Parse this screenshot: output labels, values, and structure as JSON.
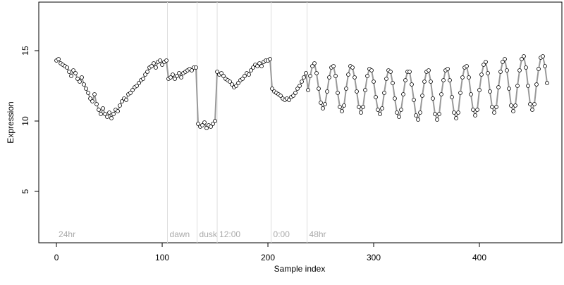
{
  "chart_data": {
    "type": "scatter",
    "xlabel": "Sample index",
    "ylabel": "Expression",
    "xlim": [
      -16.7,
      478
    ],
    "ylim": [
      1.35,
      18.45
    ],
    "xticks": [
      0,
      100,
      200,
      300,
      400
    ],
    "yticks": [
      5,
      10,
      15
    ],
    "markers": [
      {
        "x": 0,
        "label": "24hr"
      },
      {
        "x": 105,
        "label": "dawn"
      },
      {
        "x": 133,
        "label": "dusk"
      },
      {
        "x": 152,
        "label": "12:00"
      },
      {
        "x": 203,
        "label": "0:00"
      },
      {
        "x": 237,
        "label": "48hr"
      }
    ],
    "series": [
      {
        "color": "#999999",
        "x": [
          0,
          2,
          4,
          6,
          8,
          10,
          12,
          14,
          16,
          18,
          20,
          22,
          24,
          26,
          28,
          30,
          32,
          34,
          36,
          38,
          40,
          42,
          44,
          46,
          48,
          50,
          52,
          54,
          56,
          58,
          60,
          62,
          64,
          66,
          68,
          70,
          72,
          74,
          76,
          78,
          80,
          82,
          84,
          86,
          88,
          90,
          92,
          94,
          96,
          98,
          100,
          102,
          104,
          106,
          108,
          110,
          112,
          114,
          116,
          118,
          120,
          122,
          124,
          126,
          128,
          130,
          132,
          134,
          136,
          138,
          140,
          142,
          144,
          146,
          148,
          150,
          152,
          154,
          156,
          158,
          160,
          162,
          164,
          166,
          168,
          170,
          172,
          174,
          176,
          178,
          180,
          182,
          184,
          186,
          188,
          190,
          192,
          194,
          196,
          198,
          200,
          202,
          204,
          206,
          208,
          210,
          212,
          214,
          216,
          218,
          220,
          222,
          224,
          226,
          228,
          230,
          232,
          234,
          236,
          238,
          240,
          242,
          244,
          246,
          248,
          250,
          252,
          254,
          256,
          258,
          260,
          262,
          264,
          266,
          268,
          270,
          272,
          274,
          276,
          278,
          280,
          282,
          284,
          286,
          288,
          290,
          292,
          294,
          296,
          298,
          300,
          302,
          304,
          306,
          308,
          310,
          312,
          314,
          316,
          318,
          320,
          322,
          324,
          326,
          328,
          330,
          332,
          334,
          336,
          338,
          340,
          342,
          344,
          346,
          348,
          350,
          352,
          354,
          356,
          358,
          360,
          362,
          364,
          366,
          368,
          370,
          372,
          374,
          376,
          378,
          380,
          382,
          384,
          386,
          388,
          390,
          392,
          394,
          396,
          398,
          400,
          402,
          404,
          406,
          408,
          410,
          412,
          414,
          416,
          418,
          420,
          422,
          424,
          426,
          428,
          430,
          432,
          434,
          436,
          438,
          440,
          442,
          444,
          446,
          448,
          450,
          452,
          454,
          456,
          458,
          460,
          462,
          464
        ],
        "values": [
          14.3,
          14.4,
          14.1,
          14.0,
          13.9,
          13.8,
          13.5,
          13.2,
          13.6,
          13.4,
          13.0,
          12.8,
          13.1,
          12.6,
          12.3,
          12.0,
          11.6,
          11.4,
          11.9,
          11.2,
          10.8,
          10.5,
          10.9,
          10.5,
          10.3,
          10.6,
          10.2,
          10.5,
          10.8,
          10.7,
          11.1,
          11.4,
          11.6,
          11.5,
          11.9,
          12.0,
          12.2,
          12.4,
          12.5,
          12.7,
          12.9,
          13.0,
          13.3,
          13.5,
          13.8,
          13.9,
          14.1,
          13.8,
          14.2,
          14.3,
          14.0,
          14.2,
          14.3,
          13.0,
          13.1,
          13.3,
          13.0,
          13.2,
          13.4,
          13.1,
          13.4,
          13.5,
          13.6,
          13.7,
          13.6,
          13.8,
          13.8,
          9.8,
          9.6,
          9.7,
          9.9,
          9.5,
          9.7,
          9.6,
          9.8,
          10.0,
          13.5,
          13.3,
          13.4,
          13.2,
          13.0,
          12.9,
          12.8,
          12.6,
          12.4,
          12.5,
          12.7,
          12.9,
          13.0,
          13.2,
          13.4,
          13.3,
          13.6,
          13.8,
          14.0,
          13.9,
          14.1,
          13.9,
          14.2,
          14.3,
          14.3,
          14.4,
          12.3,
          12.1,
          12.0,
          11.9,
          11.8,
          11.6,
          11.5,
          11.6,
          11.5,
          11.7,
          11.8,
          12.0,
          12.3,
          12.5,
          12.8,
          13.1,
          13.4,
          12.2,
          13.2,
          13.9,
          14.1,
          13.4,
          12.3,
          11.3,
          10.9,
          11.2,
          12.1,
          13.1,
          13.8,
          13.9,
          13.2,
          12.0,
          11.0,
          10.7,
          11.1,
          12.3,
          13.3,
          13.9,
          13.8,
          13.1,
          12.1,
          11.0,
          10.6,
          11.0,
          12.2,
          13.2,
          13.7,
          13.6,
          12.8,
          11.7,
          10.8,
          10.5,
          10.9,
          12.0,
          13.0,
          13.6,
          13.5,
          12.7,
          11.6,
          10.6,
          10.3,
          10.8,
          11.9,
          12.9,
          13.5,
          13.5,
          12.6,
          11.5,
          10.4,
          10.1,
          10.6,
          11.8,
          12.8,
          13.5,
          13.6,
          12.8,
          11.6,
          10.5,
          10.1,
          10.5,
          11.9,
          12.9,
          13.6,
          13.7,
          12.9,
          11.7,
          10.6,
          10.2,
          10.6,
          12.0,
          13.1,
          13.8,
          13.9,
          13.1,
          11.9,
          10.8,
          10.4,
          10.8,
          12.2,
          13.3,
          14.0,
          14.2,
          13.4,
          12.1,
          11.0,
          10.6,
          11.0,
          12.4,
          13.5,
          14.2,
          14.4,
          13.6,
          12.3,
          11.1,
          10.7,
          11.1,
          12.5,
          13.6,
          14.4,
          14.6,
          13.8,
          12.5,
          11.2,
          10.8,
          11.2,
          12.6,
          13.7,
          14.5,
          14.6,
          13.9,
          12.7
        ]
      }
    ]
  }
}
